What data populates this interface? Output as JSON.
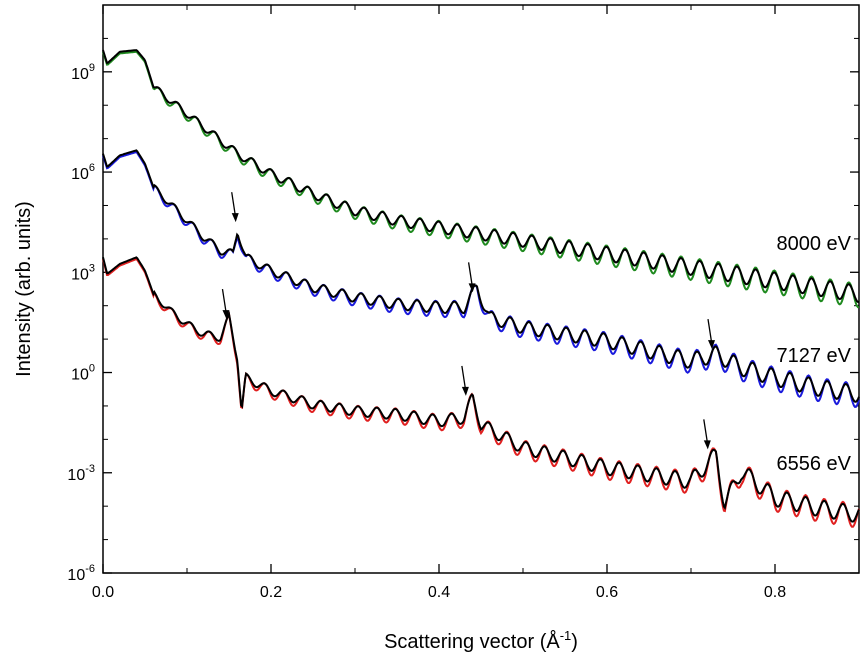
{
  "chart_data": {
    "type": "line",
    "xlabel": "Scattering vector (Å",
    "xlabel_sup": "-1",
    "xlabel_close": ")",
    "ylabel": "Intensity (arb. units)",
    "xlim": [
      0.0,
      0.9
    ],
    "ylim_log10": [
      -6,
      11
    ],
    "y_scale": "log",
    "grid": false,
    "x_ticks": [
      "0.0",
      "0.2",
      "0.4",
      "0.6",
      "0.8"
    ],
    "x_tick_values": [
      0.0,
      0.2,
      0.4,
      0.6,
      0.8
    ],
    "y_ticks": [
      {
        "base": "10",
        "exp": "-6",
        "value": -6
      },
      {
        "base": "10",
        "exp": "-3",
        "value": -3
      },
      {
        "base": "10",
        "exp": "0",
        "value": 0
      },
      {
        "base": "10",
        "exp": "3",
        "value": 3
      },
      {
        "base": "10",
        "exp": "6",
        "value": 6
      },
      {
        "base": "10",
        "exp": "9",
        "value": 9
      }
    ],
    "series": [
      {
        "name": "8000 eV",
        "color": "#1f8a1f",
        "fit_color": "#000000",
        "points": [
          [
            0.0,
            9.6
          ],
          [
            0.005,
            9.2
          ],
          [
            0.02,
            9.55
          ],
          [
            0.04,
            9.6
          ],
          [
            0.05,
            9.3
          ],
          [
            0.06,
            8.5
          ],
          [
            0.08,
            8.1
          ],
          [
            0.1,
            7.7
          ],
          [
            0.12,
            7.3
          ],
          [
            0.14,
            6.9
          ],
          [
            0.16,
            6.5
          ],
          [
            0.2,
            5.9
          ],
          [
            0.25,
            5.3
          ],
          [
            0.3,
            4.8
          ],
          [
            0.35,
            4.5
          ],
          [
            0.4,
            4.3
          ],
          [
            0.45,
            4.1
          ],
          [
            0.5,
            3.9
          ],
          [
            0.55,
            3.7
          ],
          [
            0.6,
            3.5
          ],
          [
            0.65,
            3.3
          ],
          [
            0.7,
            3.1
          ],
          [
            0.75,
            2.9
          ],
          [
            0.8,
            2.7
          ],
          [
            0.85,
            2.5
          ],
          [
            0.9,
            2.3
          ]
        ]
      },
      {
        "name": "7127 eV",
        "color": "#1a1adc",
        "fit_color": "#000000",
        "points": [
          [
            0.0,
            6.5
          ],
          [
            0.005,
            6.1
          ],
          [
            0.02,
            6.45
          ],
          [
            0.04,
            6.6
          ],
          [
            0.05,
            6.2
          ],
          [
            0.06,
            5.5
          ],
          [
            0.08,
            5.0
          ],
          [
            0.1,
            4.5
          ],
          [
            0.12,
            4.0
          ],
          [
            0.14,
            3.6
          ],
          [
            0.155,
            3.5
          ],
          [
            0.16,
            4.2
          ],
          [
            0.17,
            3.4
          ],
          [
            0.2,
            3.0
          ],
          [
            0.25,
            2.5
          ],
          [
            0.3,
            2.2
          ],
          [
            0.35,
            2.0
          ],
          [
            0.4,
            1.9
          ],
          [
            0.43,
            1.9
          ],
          [
            0.445,
            2.5
          ],
          [
            0.46,
            1.6
          ],
          [
            0.5,
            1.3
          ],
          [
            0.55,
            1.1
          ],
          [
            0.6,
            0.9
          ],
          [
            0.65,
            0.6
          ],
          [
            0.7,
            0.3
          ],
          [
            0.73,
            0.5
          ],
          [
            0.76,
            0.1
          ],
          [
            0.8,
            -0.2
          ],
          [
            0.85,
            -0.5
          ],
          [
            0.9,
            -0.7
          ]
        ]
      },
      {
        "name": "6556 eV",
        "color": "#e02020",
        "fit_color": "#000000",
        "points": [
          [
            0.0,
            3.4
          ],
          [
            0.005,
            2.9
          ],
          [
            0.02,
            3.2
          ],
          [
            0.04,
            3.4
          ],
          [
            0.05,
            3.0
          ],
          [
            0.06,
            2.3
          ],
          [
            0.08,
            1.8
          ],
          [
            0.1,
            1.4
          ],
          [
            0.12,
            1.1
          ],
          [
            0.14,
            1.0
          ],
          [
            0.15,
            1.6
          ],
          [
            0.16,
            0.4
          ],
          [
            0.165,
            -1.2
          ],
          [
            0.17,
            -0.2
          ],
          [
            0.2,
            -0.6
          ],
          [
            0.25,
            -1.0
          ],
          [
            0.3,
            -1.2
          ],
          [
            0.35,
            -1.3
          ],
          [
            0.4,
            -1.5
          ],
          [
            0.43,
            -1.4
          ],
          [
            0.44,
            -0.8
          ],
          [
            0.45,
            -1.6
          ],
          [
            0.5,
            -2.3
          ],
          [
            0.55,
            -2.6
          ],
          [
            0.6,
            -2.9
          ],
          [
            0.65,
            -3.1
          ],
          [
            0.7,
            -3.3
          ],
          [
            0.73,
            -2.5
          ],
          [
            0.74,
            -4.0
          ],
          [
            0.76,
            -3.0
          ],
          [
            0.8,
            -3.8
          ],
          [
            0.85,
            -4.1
          ],
          [
            0.9,
            -4.3
          ]
        ]
      }
    ],
    "annotations": [
      {
        "text": "8000 eV",
        "color": "#1f8a1f"
      },
      {
        "text": "7127 eV",
        "color": "#1a1adc"
      },
      {
        "text": "6556 eV",
        "color": "#e02020"
      }
    ],
    "arrows": [
      {
        "x": 0.158,
        "y_log10": 4.5
      },
      {
        "x": 0.147,
        "y_log10": 1.6
      },
      {
        "x": 0.44,
        "y_log10": 2.4
      },
      {
        "x": 0.432,
        "y_log10": -0.7
      },
      {
        "x": 0.725,
        "y_log10": 0.7
      },
      {
        "x": 0.72,
        "y_log10": -2.3
      }
    ]
  }
}
